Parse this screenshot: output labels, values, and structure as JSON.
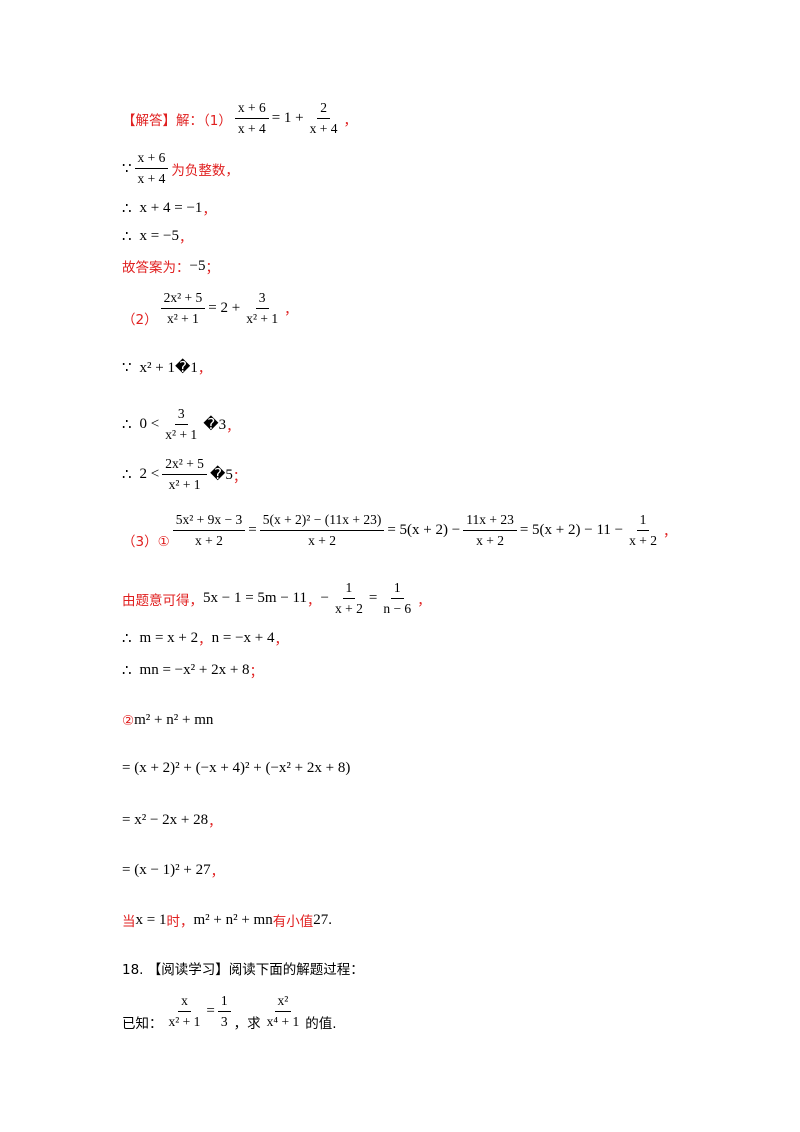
{
  "solution": {
    "heading": "【解答】解：（1）",
    "p1_frac_num": "x + 6",
    "p1_frac_den": "x + 4",
    "p1_eq": "= 1 +",
    "p1_frac2_num": "2",
    "p1_frac2_den": "x + 4",
    "comma": "，",
    "because": "∵",
    "therefore": "∴",
    "neg_int_text": "为负整数，",
    "step_x4": "x + 4 = −1",
    "step_x": "x = −5",
    "answer_label": "故答案为：",
    "answer_value": "−5",
    "semicolon": "；",
    "part2_label": "（2）",
    "p2_lhs_num": "2x² + 5",
    "p2_lhs_den": "x² + 1",
    "p2_eq": "= 2 +",
    "p2_rhs_num": "3",
    "p2_rhs_den": "x² + 1",
    "p2_step1": "x² + 1�1",
    "p2_step2_left": "0 <",
    "p2_step2_right": "�3",
    "p2_step3_left": "2 <",
    "p2_step3_right": "�5",
    "part3_label": "（3）①",
    "p3_frac1_num": "5x² + 9x − 3",
    "p3_den": "x + 2",
    "p3_frac2_num": "5(x + 2)² − (11x + 23)",
    "p3_mid": "= 5(x + 2) −",
    "p3_frac3_num": "11x + 23",
    "p3_tail": "= 5(x + 2) − 11 −",
    "p3_frac4_num": "1",
    "given_label": "由题意可得，",
    "given_eq1": "5x − 1 = 5m − 11",
    "given_frac_num": "1",
    "given_frac_den": "x + 2",
    "given_rhs_num": "1",
    "given_rhs_den": "n − 6",
    "mn_def": "m = x + 2",
    "n_def": "n = −x + 4",
    "mn_prod": "mn = −x² + 2x + 8",
    "part3b_label": "②",
    "expr": "m² + n² + mn",
    "expand": "= (x + 2)² + (−x + 4)² + (−x² + 2x + 8)",
    "simplified": "= x² − 2x + 28",
    "completed": "= (x − 1)² + 27",
    "when_label": "当",
    "when_x": "x = 1",
    "when_comma": "时，",
    "min_expr": "m² + n² + mn",
    "min_text": "有小值",
    "min_value": "27."
  },
  "problem18": {
    "title": "18. 【阅读学习】阅读下面的解题过程：",
    "known_label": "已知：",
    "known_num": "x",
    "known_den": "x² + 1",
    "known_eq": "=",
    "known_val_num": "1",
    "known_val_den": "3",
    "ask_label": "，求",
    "ask_num": "x²",
    "ask_den": "x⁴ + 1",
    "ask_tail": "的值."
  }
}
